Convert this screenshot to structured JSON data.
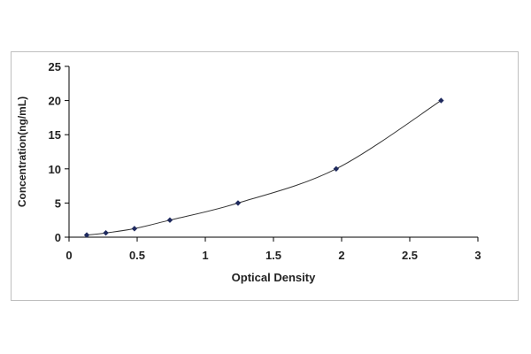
{
  "chart_data": {
    "type": "scatter",
    "title": "",
    "xlabel": "Optical Density",
    "ylabel": "Concentration(ng/mL)",
    "xlim": [
      0,
      3
    ],
    "ylim": [
      0,
      25
    ],
    "xticks": [
      "0",
      "0.5",
      "1",
      "1.5",
      "2",
      "2.5",
      "3"
    ],
    "yticks": [
      "0",
      "5",
      "10",
      "15",
      "20",
      "25"
    ],
    "grid": false,
    "legend": "none",
    "series": [
      {
        "x": [
          0.13,
          0.27,
          0.48,
          0.74,
          1.24,
          1.96,
          2.73
        ],
        "y": [
          0.31,
          0.625,
          1.25,
          2.5,
          5,
          10,
          20
        ],
        "marker_color": "#1f2a5e",
        "line_color": "#333333",
        "fit": "smooth-curve"
      }
    ]
  }
}
